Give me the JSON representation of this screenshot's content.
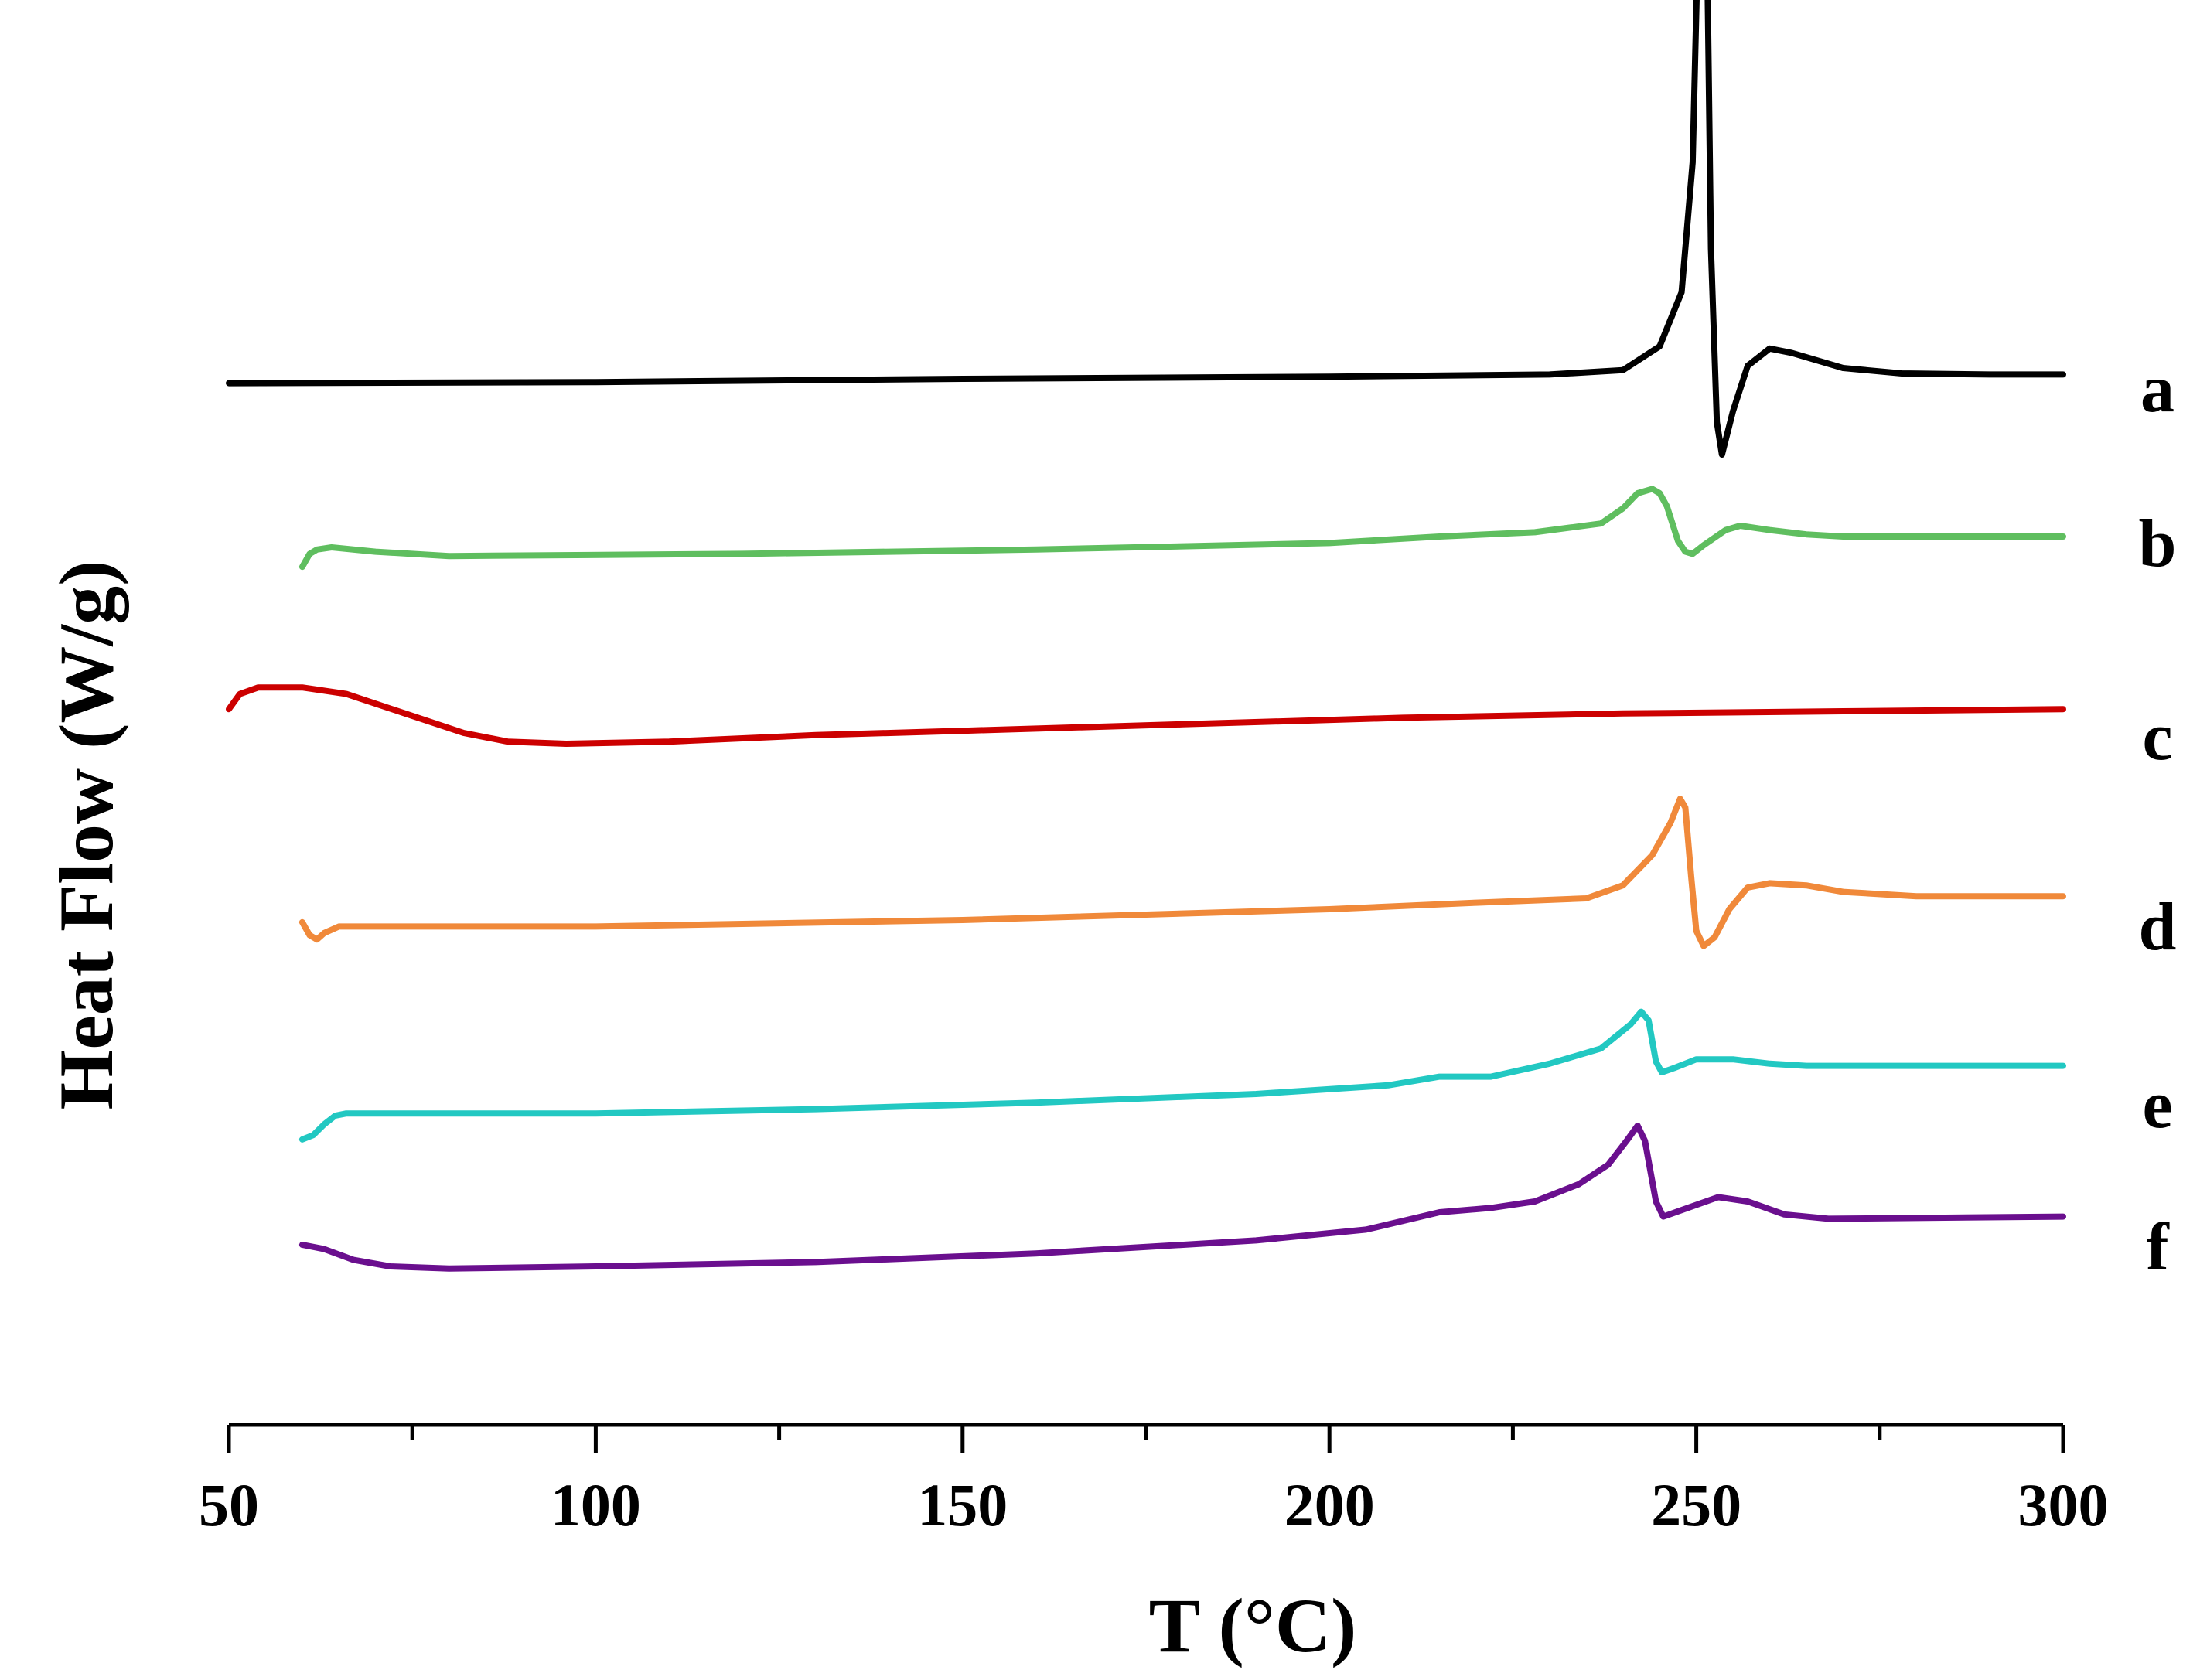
{
  "chart_data": {
    "type": "line",
    "title": "",
    "xlabel": "T (°C)",
    "ylabel": "Heat Flow (W/g)",
    "xlim": [
      50,
      300
    ],
    "xticks": [
      50,
      100,
      150,
      200,
      250,
      300
    ],
    "xtick_labels": [
      "50",
      "100",
      "150",
      "200",
      "250",
      "300"
    ],
    "y_axis_shown": false,
    "grid": false,
    "series": [
      {
        "name": "a",
        "color": "#000000",
        "points": [
          [
            50,
            -0.2
          ],
          [
            100,
            -0.15
          ],
          [
            150,
            0
          ],
          [
            200,
            0.1
          ],
          [
            230,
            0.2
          ],
          [
            240,
            0.4
          ],
          [
            245,
            1.5
          ],
          [
            248,
            4
          ],
          [
            249.5,
            10
          ],
          [
            250.5,
            24
          ],
          [
            251.3,
            24.5
          ],
          [
            252,
            6
          ],
          [
            252.8,
            -2
          ],
          [
            253.5,
            -3.5
          ],
          [
            255,
            -1.5
          ],
          [
            257,
            0.6
          ],
          [
            260,
            1.4
          ],
          [
            263,
            1.2
          ],
          [
            270,
            0.5
          ],
          [
            278,
            0.25
          ],
          [
            290,
            0.2
          ],
          [
            300,
            0.2
          ]
        ]
      },
      {
        "name": "b",
        "color": "#5fbe5f",
        "points": [
          [
            60,
            -0.4
          ],
          [
            61,
            0.2
          ],
          [
            62,
            0.4
          ],
          [
            64,
            0.5
          ],
          [
            70,
            0.3
          ],
          [
            80,
            0.1
          ],
          [
            120,
            0.2
          ],
          [
            160,
            0.4
          ],
          [
            200,
            0.7
          ],
          [
            215,
            1.0
          ],
          [
            228,
            1.2
          ],
          [
            237,
            1.6
          ],
          [
            240,
            2.3
          ],
          [
            242,
            3.0
          ],
          [
            244,
            3.2
          ],
          [
            245,
            3.0
          ],
          [
            246,
            2.4
          ],
          [
            247.5,
            0.8
          ],
          [
            248.5,
            0.3
          ],
          [
            249.5,
            0.2
          ],
          [
            251,
            0.6
          ],
          [
            254,
            1.3
          ],
          [
            256,
            1.5
          ],
          [
            260,
            1.3
          ],
          [
            265,
            1.1
          ],
          [
            270,
            1.0
          ],
          [
            280,
            1.0
          ],
          [
            300,
            1.0
          ]
        ]
      },
      {
        "name": "c",
        "color": "#cc0000",
        "points": [
          [
            50,
            1.6
          ],
          [
            51.5,
            2.3
          ],
          [
            54,
            2.6
          ],
          [
            60,
            2.6
          ],
          [
            66,
            2.3
          ],
          [
            74,
            1.4
          ],
          [
            82,
            0.5
          ],
          [
            88,
            0.1
          ],
          [
            96,
            0
          ],
          [
            110,
            0.1
          ],
          [
            130,
            0.4
          ],
          [
            150,
            0.6
          ],
          [
            180,
            0.9
          ],
          [
            210,
            1.2
          ],
          [
            240,
            1.4
          ],
          [
            270,
            1.5
          ],
          [
            300,
            1.6
          ]
        ]
      },
      {
        "name": "d",
        "color": "#f0893a",
        "points": [
          [
            60,
            -0.1
          ],
          [
            61,
            -0.7
          ],
          [
            62,
            -0.9
          ],
          [
            63,
            -0.6
          ],
          [
            65,
            -0.3
          ],
          [
            70,
            -0.3
          ],
          [
            100,
            -0.3
          ],
          [
            150,
            0
          ],
          [
            200,
            0.5
          ],
          [
            220,
            0.8
          ],
          [
            235,
            1.0
          ],
          [
            240,
            1.6
          ],
          [
            244,
            3.0
          ],
          [
            246.5,
            4.5
          ],
          [
            247.8,
            5.6
          ],
          [
            248.5,
            5.2
          ],
          [
            249.3,
            2.0
          ],
          [
            250,
            -0.5
          ],
          [
            251,
            -1.2
          ],
          [
            252.5,
            -0.8
          ],
          [
            254.5,
            0.5
          ],
          [
            257,
            1.5
          ],
          [
            260,
            1.7
          ],
          [
            265,
            1.6
          ],
          [
            270,
            1.3
          ],
          [
            280,
            1.1
          ],
          [
            300,
            1.1
          ]
        ]
      },
      {
        "name": "e",
        "color": "#22c8c2",
        "points": [
          [
            60,
            -1.1
          ],
          [
            61.5,
            -0.9
          ],
          [
            63,
            -0.4
          ],
          [
            64.5,
            0
          ],
          [
            66,
            0.1
          ],
          [
            70,
            0.1
          ],
          [
            100,
            0.1
          ],
          [
            130,
            0.3
          ],
          [
            160,
            0.6
          ],
          [
            190,
            1.0
          ],
          [
            208,
            1.4
          ],
          [
            215,
            1.8
          ],
          [
            222,
            1.8
          ],
          [
            230,
            2.4
          ],
          [
            237,
            3.1
          ],
          [
            241,
            4.2
          ],
          [
            242.5,
            4.8
          ],
          [
            243.5,
            4.4
          ],
          [
            244.5,
            2.5
          ],
          [
            245.3,
            2.0
          ],
          [
            247,
            2.2
          ],
          [
            250,
            2.6
          ],
          [
            255,
            2.6
          ],
          [
            260,
            2.4
          ],
          [
            265,
            2.3
          ],
          [
            270,
            2.3
          ],
          [
            300,
            2.3
          ]
        ]
      },
      {
        "name": "f",
        "color": "#6a0f8e",
        "points": [
          [
            60,
            1.0
          ],
          [
            63,
            0.8
          ],
          [
            67,
            0.3
          ],
          [
            72,
            0.0
          ],
          [
            80,
            -0.1
          ],
          [
            100,
            0
          ],
          [
            130,
            0.2
          ],
          [
            160,
            0.6
          ],
          [
            190,
            1.2
          ],
          [
            205,
            1.7
          ],
          [
            215,
            2.5
          ],
          [
            222,
            2.7
          ],
          [
            228,
            3.0
          ],
          [
            234,
            3.8
          ],
          [
            238,
            4.7
          ],
          [
            240.5,
            5.8
          ],
          [
            242,
            6.5
          ],
          [
            243,
            5.8
          ],
          [
            244.5,
            3.0
          ],
          [
            245.5,
            2.3
          ],
          [
            248,
            2.6
          ],
          [
            253,
            3.2
          ],
          [
            257,
            3.0
          ],
          [
            262,
            2.4
          ],
          [
            268,
            2.2
          ],
          [
            300,
            2.3
          ]
        ]
      }
    ]
  }
}
